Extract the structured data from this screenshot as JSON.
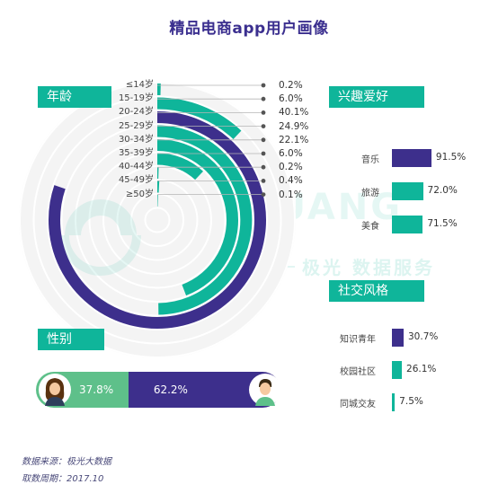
{
  "title": "精品电商app用户画像",
  "watermark": {
    "brand": "JIGUANG",
    "tagline": "极光 数据服务"
  },
  "colors": {
    "teal": "#0fb59a",
    "purple": "#3d2f8c",
    "green": "#5ec08a",
    "light_ring": "#efefef"
  },
  "sections": {
    "age": "年龄",
    "interest": "兴趣爱好",
    "gender": "性别",
    "social": "社交风格"
  },
  "chart_data": [
    {
      "type": "radial-bar",
      "section": "年龄",
      "categories": [
        "≤14岁",
        "15-19岁",
        "20-24岁",
        "25-29岁",
        "30-34岁",
        "35-39岁",
        "40-44岁",
        "45-49岁",
        "≥50岁"
      ],
      "values": [
        0.2,
        6.0,
        40.1,
        24.9,
        22.1,
        6.0,
        0.2,
        0.4,
        0.1
      ],
      "labels": [
        "0.2%",
        "6.0%",
        "40.1%",
        "24.9%",
        "22.1%",
        "6.0%",
        "0.2%",
        "0.4%",
        "0.1%"
      ],
      "colors": [
        "teal",
        "teal",
        "purple",
        "teal",
        "teal",
        "teal",
        "teal",
        "teal",
        "teal"
      ],
      "max": 50
    },
    {
      "type": "bar",
      "section": "兴趣爱好",
      "categories": [
        "音乐",
        "旅游",
        "美食"
      ],
      "values": [
        91.5,
        72.0,
        71.5
      ],
      "labels": [
        "91.5%",
        "72.0%",
        "71.5%"
      ],
      "colors": [
        "purple",
        "teal",
        "teal"
      ],
      "max": 100
    },
    {
      "type": "bar",
      "section": "性别",
      "categories": [
        "female",
        "male"
      ],
      "values": [
        37.8,
        62.2
      ],
      "labels": [
        "37.8%",
        "62.2%"
      ]
    },
    {
      "type": "bar",
      "section": "社交风格",
      "categories": [
        "知识青年",
        "校园社区",
        "同城交友"
      ],
      "values": [
        30.7,
        26.1,
        7.5
      ],
      "labels": [
        "30.7%",
        "26.1%",
        "7.5%"
      ],
      "colors": [
        "purple",
        "teal",
        "teal"
      ],
      "max": 30.7
    }
  ],
  "footer": {
    "source": "数据来源：极光大数据",
    "period": "取数周期：2017.10"
  }
}
